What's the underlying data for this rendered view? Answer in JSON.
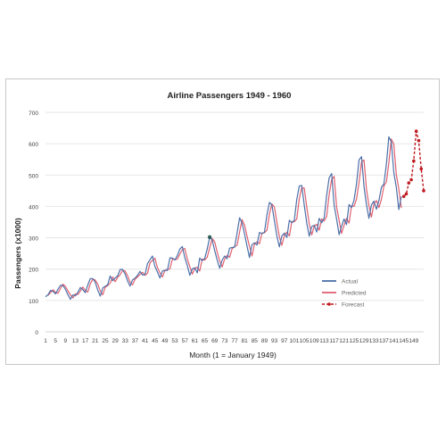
{
  "chart_data": {
    "type": "line",
    "title": "Airline Passengers 1949 - 1960",
    "xlabel": "Month (1 = January 1949)",
    "ylabel": "Passengers (x1000)",
    "ylim": [
      0,
      700
    ],
    "yticks": [
      0,
      100,
      200,
      300,
      400,
      500,
      600,
      700
    ],
    "xlim": [
      1,
      153
    ],
    "xticks": [
      1,
      5,
      9,
      13,
      17,
      21,
      25,
      29,
      33,
      37,
      41,
      45,
      49,
      53,
      57,
      61,
      65,
      69,
      73,
      77,
      81,
      85,
      89,
      93,
      97,
      101,
      105,
      109,
      113,
      117,
      121,
      125,
      129,
      133,
      137,
      141,
      145,
      149
    ],
    "grid": "horizontal",
    "legend_position": "bottom-right",
    "series": [
      {
        "name": "Actual",
        "color": "#4a6fa8",
        "style": "solid",
        "x_start": 1,
        "values": [
          112,
          118,
          132,
          129,
          121,
          135,
          148,
          148,
          136,
          119,
          104,
          118,
          115,
          126,
          141,
          135,
          125,
          149,
          170,
          170,
          158,
          133,
          114,
          140,
          145,
          150,
          178,
          163,
          172,
          178,
          199,
          199,
          184,
          162,
          146,
          166,
          171,
          180,
          193,
          181,
          183,
          218,
          230,
          242,
          209,
          191,
          172,
          194,
          196,
          196,
          236,
          235,
          229,
          243,
          264,
          272,
          237,
          211,
          180,
          201,
          204,
          188,
          235,
          227,
          234,
          264,
          302,
          293,
          259,
          229,
          203,
          229,
          242,
          233,
          267,
          269,
          270,
          315,
          364,
          347,
          312,
          274,
          237,
          278,
          284,
          277,
          317,
          313,
          318,
          374,
          413,
          405,
          355,
          306,
          271,
          306,
          315,
          301,
          356,
          348,
          355,
          422,
          465,
          467,
          404,
          347,
          305,
          336,
          340,
          318,
          362,
          348,
          363,
          435,
          491,
          505,
          404,
          359,
          310,
          337,
          360,
          342,
          406,
          396,
          420,
          472,
          548,
          559,
          463,
          407,
          362,
          405,
          417,
          391,
          419,
          461,
          472,
          535,
          622,
          606,
          508,
          461,
          390,
          432
        ]
      },
      {
        "name": "Predicted",
        "color": "#e06070",
        "style": "solid",
        "x_start": 2,
        "values": [
          116,
          125,
          134,
          126,
          123,
          138,
          152,
          145,
          131,
          118,
          108,
          121,
          119,
          130,
          143,
          132,
          127,
          153,
          168,
          165,
          152,
          130,
          118,
          142,
          147,
          155,
          175,
          160,
          174,
          182,
          196,
          194,
          178,
          158,
          150,
          168,
          175,
          183,
          190,
          180,
          187,
          220,
          228,
          235,
          205,
          188,
          175,
          196,
          199,
          201,
          232,
          231,
          232,
          248,
          262,
          266,
          232,
          208,
          184,
          203,
          206,
          194,
          232,
          229,
          238,
          268,
          298,
          287,
          254,
          226,
          207,
          232,
          244,
          238,
          265,
          272,
          276,
          318,
          358,
          340,
          306,
          272,
          242,
          280,
          287,
          281,
          315,
          316,
          324,
          376,
          408,
          398,
          350,
          303,
          276,
          308,
          318,
          306,
          352,
          351,
          360,
          424,
          460,
          458,
          398,
          344,
          309,
          338,
          343,
          324,
          360,
          353,
          368,
          438,
          486,
          496,
          398,
          355,
          314,
          340,
          362,
          347,
          402,
          400,
          424,
          476,
          542,
          548,
          456,
          403,
          366,
          408,
          419,
          396,
          423,
          465,
          478,
          538,
          615,
          598,
          502,
          456,
          395
        ]
      },
      {
        "name": "Forecast",
        "color": "#c0191f",
        "style": "dashed",
        "x_start": 145,
        "values": [
          432,
          440,
          475,
          485,
          545,
          640,
          610,
          520,
          450
        ]
      }
    ],
    "highlighted_point": {
      "x": 67,
      "y": 302,
      "color": "#2e5f5a"
    }
  }
}
